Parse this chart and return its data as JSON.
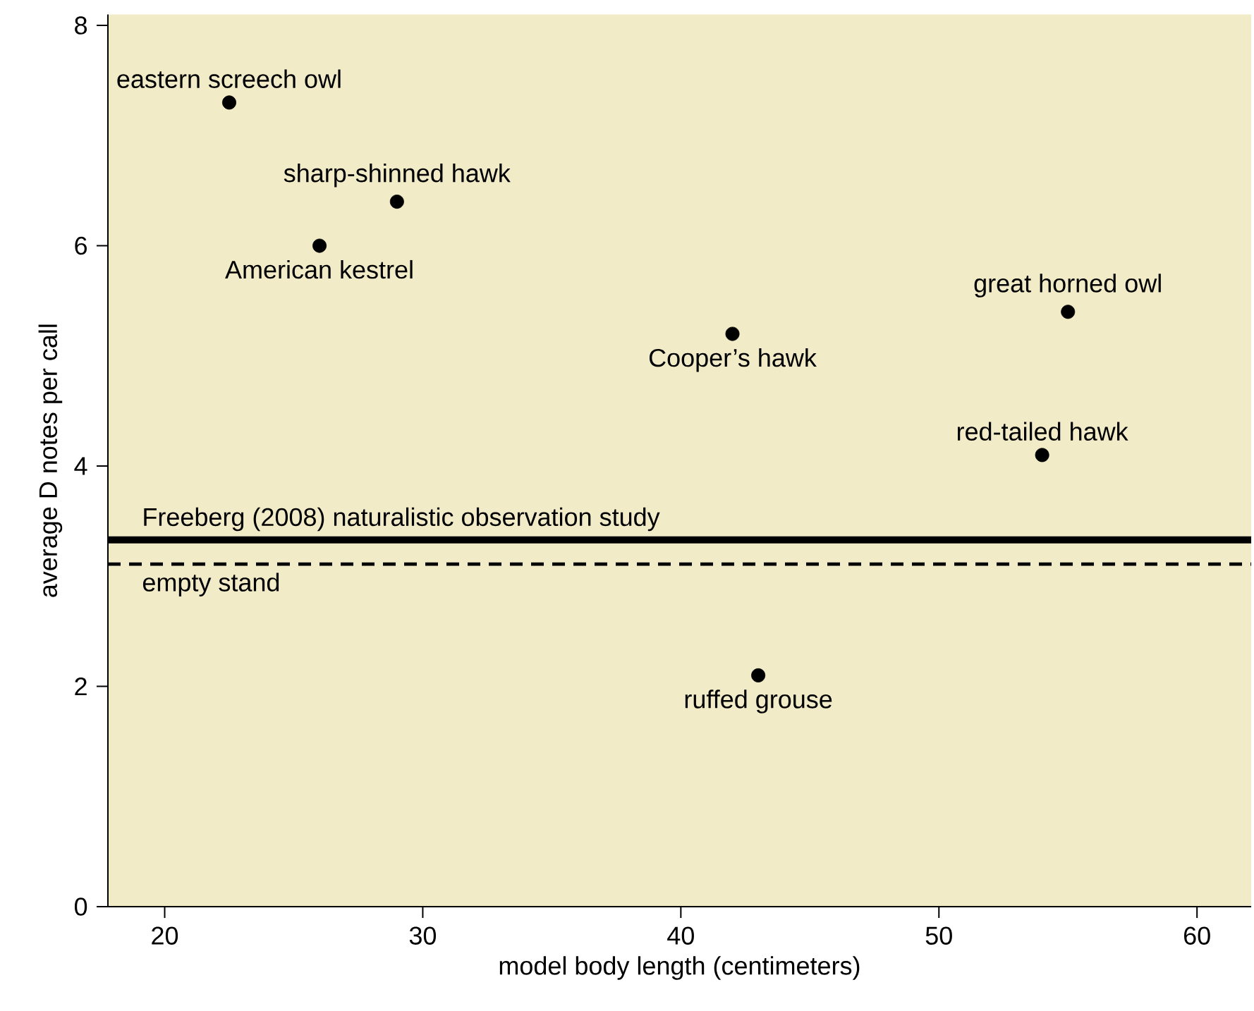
{
  "chart_data": {
    "type": "scatter",
    "xlabel": "model body length (centimeters)",
    "ylabel": "average D notes per call",
    "x": [
      22.5,
      26,
      29,
      42,
      55,
      54,
      43
    ],
    "values": [
      7.3,
      6.0,
      6.4,
      5.2,
      5.4,
      4.1,
      2.1
    ],
    "color": "#000000",
    "marker": "circle",
    "xlim": [
      17.8,
      62.1
    ],
    "ylim": [
      0,
      8.1
    ],
    "xticks": [
      20,
      30,
      40,
      50,
      60
    ],
    "yticks": [
      0,
      2,
      4,
      6,
      8
    ],
    "annotations": [
      {
        "text": "eastern screech owl",
        "x": 22.5,
        "y": 7.3
      },
      {
        "text": "American kestrel",
        "x": 26,
        "y": 6.0
      },
      {
        "text": "sharp-shinned hawk",
        "x": 29,
        "y": 6.4
      },
      {
        "text": "Cooper’s hawk",
        "x": 42,
        "y": 5.2
      },
      {
        "text": "great horned owl",
        "x": 55,
        "y": 5.4
      },
      {
        "text": "red-tailed hawk",
        "x": 54,
        "y": 4.1
      },
      {
        "text": "ruffed grouse",
        "x": 43,
        "y": 2.1
      }
    ],
    "ref_lines": [
      {
        "axis": "y",
        "value": 3.33,
        "label": "Freeberg (2008) naturalistic observation study",
        "line_style": "solid",
        "color": "#000000"
      },
      {
        "axis": "y",
        "value": 3.11,
        "label": "empty stand",
        "line_style": "dashed",
        "color": "#000000"
      }
    ]
  }
}
